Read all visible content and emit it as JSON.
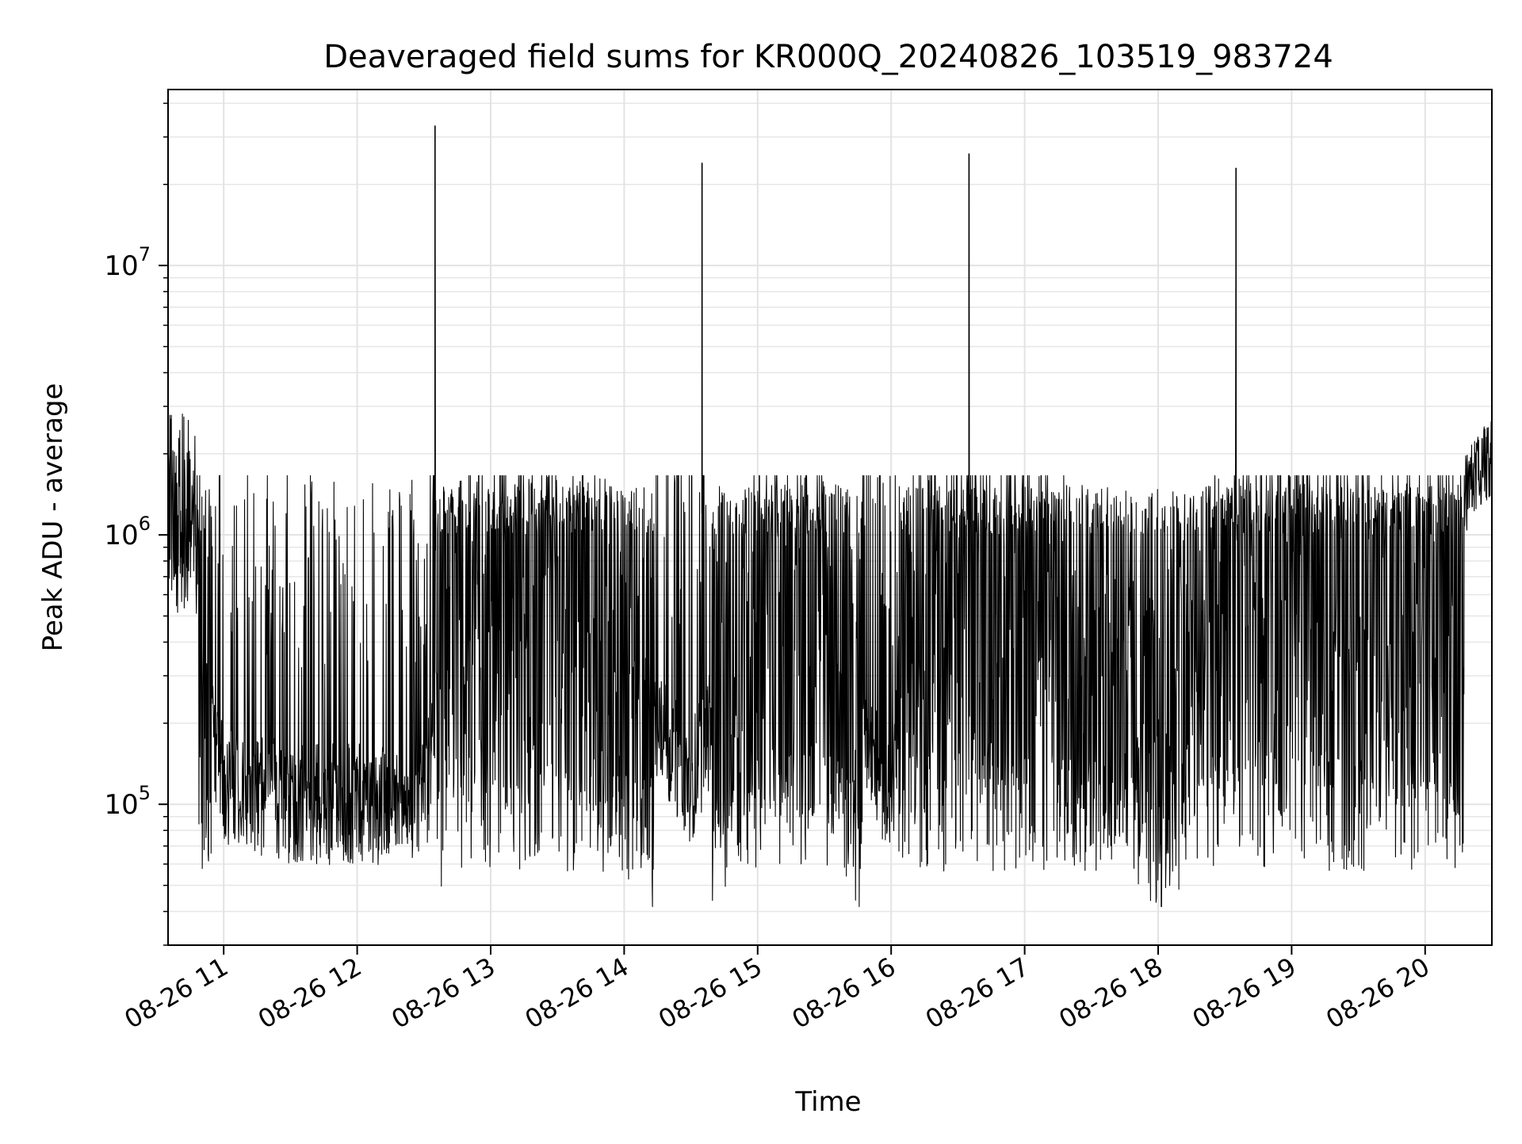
{
  "chart_data": {
    "type": "line",
    "title": "Deaveraged field sums for KR000Q_20240826_103519_983724",
    "xlabel": "Time",
    "ylabel": "Peak ADU - average",
    "yscale": "log",
    "ylim": [
      30000,
      45000000
    ],
    "xlim": [
      "2024-08-26 10:35",
      "2024-08-26 20:30"
    ],
    "x_ticks": [
      "08-26 11",
      "08-26 12",
      "08-26 13",
      "08-26 14",
      "08-26 15",
      "08-26 16",
      "08-26 17",
      "08-26 18",
      "08-26 19",
      "08-26 20"
    ],
    "y_ticks": [
      {
        "base": "10",
        "exp": "5",
        "value": 100000
      },
      {
        "base": "10",
        "exp": "6",
        "value": 1000000
      },
      {
        "base": "10",
        "exp": "7",
        "value": 10000000
      }
    ],
    "grid": true,
    "line_color": "#000000",
    "series": [
      {
        "points": [
          [
            "2024-08-26 10:35",
            2500000
          ],
          [
            "2024-08-26 10:45",
            2000000
          ],
          [
            "2024-08-26 10:50",
            300000
          ],
          [
            "2024-08-26 11:00",
            120000
          ],
          [
            "2024-08-26 11:30",
            100000
          ],
          [
            "2024-08-26 12:00",
            100000
          ],
          [
            "2024-08-26 12:30",
            100000
          ],
          [
            "2024-08-26 12:35",
            33000000
          ],
          [
            "2024-08-26 12:45",
            600000
          ],
          [
            "2024-08-26 13:00",
            800000
          ],
          [
            "2024-08-26 13:30",
            700000
          ],
          [
            "2024-08-26 14:00",
            300000
          ],
          [
            "2024-08-26 14:30",
            120000
          ],
          [
            "2024-08-26 14:35",
            24000000
          ],
          [
            "2024-08-26 15:00",
            600000
          ],
          [
            "2024-08-26 15:30",
            500000
          ],
          [
            "2024-08-26 16:00",
            100000
          ],
          [
            "2024-08-26 16:10",
            800000
          ],
          [
            "2024-08-26 16:35",
            26000000
          ],
          [
            "2024-08-26 17:00",
            600000
          ],
          [
            "2024-08-26 17:30",
            400000
          ],
          [
            "2024-08-26 18:00",
            200000
          ],
          [
            "2024-08-26 18:35",
            23000000
          ],
          [
            "2024-08-26 18:45",
            900000
          ],
          [
            "2024-08-26 19:30",
            700000
          ],
          [
            "2024-08-26 20:00",
            500000
          ],
          [
            "2024-08-26 20:15",
            1300000
          ],
          [
            "2024-08-26 20:30",
            2000000
          ]
        ]
      }
    ]
  }
}
